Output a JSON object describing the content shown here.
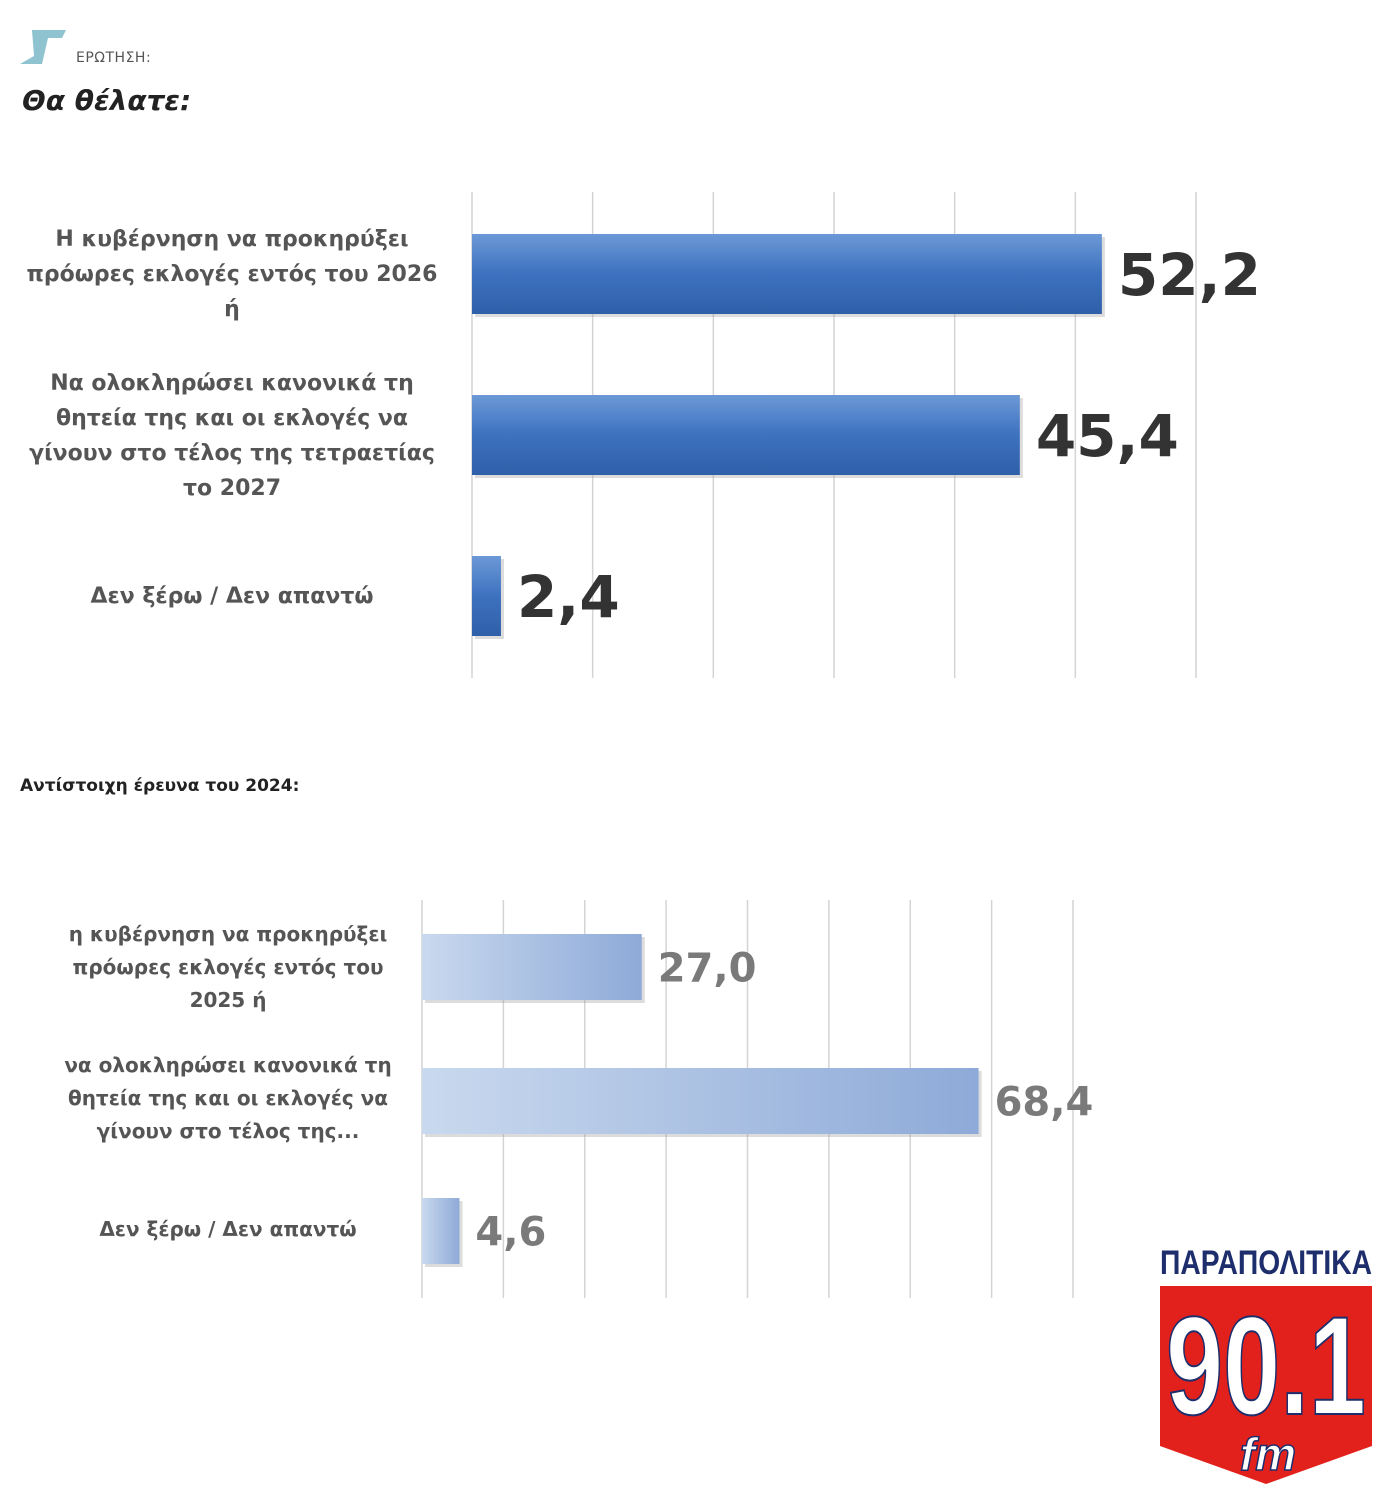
{
  "header": {
    "label": "ΕΡΩΤΗΣΗ:",
    "title": "Θα θέλατε:"
  },
  "section2": {
    "title": "Αντίστοιχη έρευνα του 2024:"
  },
  "logo": {
    "top_text": "ΠΑΡΑΠΟΛΙΤΙΚΑ",
    "frequency": "90.1",
    "band": "fm"
  },
  "colors": {
    "chart1_bar": "#3d72c0",
    "chart2_bar_light": "#c9d9ee",
    "chart2_bar_dark": "#8eaad8",
    "chart1_value": "#333333",
    "chart2_value": "#7a7a7a",
    "logo_red": "#e3211c",
    "logo_navy": "#1e2d6b"
  },
  "chart_data": [
    {
      "type": "bar",
      "orientation": "horizontal",
      "title": "Θα θέλατε:",
      "categories": [
        "Η κυβέρνηση να προκηρύξει πρόωρες εκλογές εντός του 2026 ή",
        "Να ολοκληρώσει κανονικά τη θητεία της και οι εκλογές να γίνουν στο τέλος της τετραετίας το 2027",
        "Δεν ξέρω / Δεν απαντώ"
      ],
      "category_lines": [
        [
          "Η κυβέρνηση να προκηρύξει",
          "πρόωρες εκλογές εντός του 2026",
          "ή"
        ],
        [
          "Να ολοκληρώσει κανονικά τη",
          "θητεία της και οι εκλογές να",
          "γίνουν στο τέλος της τετραετίας",
          "το 2027"
        ],
        [
          "Δεν ξέρω / Δεν απαντώ"
        ]
      ],
      "values": [
        52.2,
        45.4,
        2.4
      ],
      "value_labels": [
        "52,2",
        "45,4",
        "2,4"
      ],
      "xlim": [
        0,
        60
      ],
      "grid_step": 10,
      "grid": true
    },
    {
      "type": "bar",
      "orientation": "horizontal",
      "title": "Αντίστοιχη έρευνα του 2024:",
      "categories": [
        "η κυβέρνηση να προκηρύξει πρόωρες εκλογές εντός του 2025 ή",
        "να ολοκληρώσει κανονικά τη θητεία της και οι εκλογές να γίνουν στο τέλος της...",
        "Δεν ξέρω / Δεν απαντώ"
      ],
      "category_lines": [
        [
          "η κυβέρνηση να προκηρύξει",
          "πρόωρες εκλογές εντός του",
          "2025 ή"
        ],
        [
          "να ολοκληρώσει κανονικά τη",
          "θητεία της και οι εκλογές να",
          "γίνουν στο τέλος της..."
        ],
        [
          "Δεν ξέρω / Δεν απαντώ"
        ]
      ],
      "values": [
        27.0,
        68.4,
        4.6
      ],
      "value_labels": [
        "27,0",
        "68,4",
        "4,6"
      ],
      "xlim": [
        0,
        80
      ],
      "grid_step": 10,
      "grid": true
    }
  ]
}
